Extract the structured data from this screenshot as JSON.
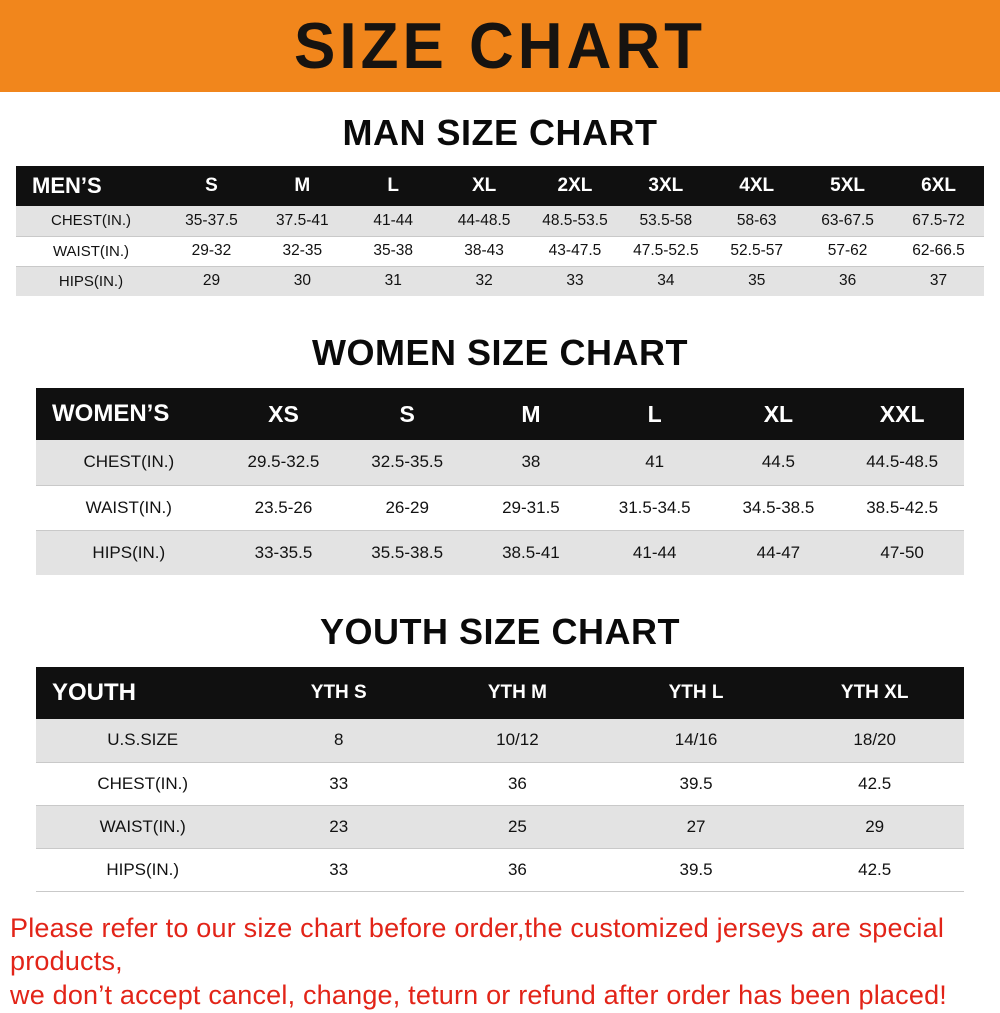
{
  "colors": {
    "banner_bg": "#f1861c",
    "table_header_bg": "#101010",
    "row_alt_bg": "#e3e3e3",
    "footnote_red": "#e22418"
  },
  "banner": {
    "title": "SIZE CHART"
  },
  "sections": [
    {
      "id": "men",
      "heading": "MAN SIZE CHART",
      "table": {
        "header": [
          "MEN’S",
          "S",
          "M",
          "L",
          "XL",
          "2XL",
          "3XL",
          "4XL",
          "5XL",
          "6XL"
        ],
        "rows": [
          {
            "label": "CHEST(IN.)",
            "values": [
              "35-37.5",
              "37.5-41",
              "41-44",
              "44-48.5",
              "48.5-53.5",
              "53.5-58",
              "58-63",
              "63-67.5",
              "67.5-72"
            ]
          },
          {
            "label": "WAIST(IN.)",
            "values": [
              "29-32",
              "32-35",
              "35-38",
              "38-43",
              "43-47.5",
              "47.5-52.5",
              "52.5-57",
              "57-62",
              "62-66.5"
            ]
          },
          {
            "label": "HIPS(IN.)",
            "values": [
              "29",
              "30",
              "31",
              "32",
              "33",
              "34",
              "35",
              "36",
              "37"
            ]
          }
        ]
      }
    },
    {
      "id": "women",
      "heading": "WOMEN SIZE CHART",
      "table": {
        "header": [
          "WOMEN’S",
          "XS",
          "S",
          "M",
          "L",
          "XL",
          "XXL"
        ],
        "rows": [
          {
            "label": "CHEST(IN.)",
            "values": [
              "29.5-32.5",
              "32.5-35.5",
              "38",
              "41",
              "44.5",
              "44.5-48.5"
            ]
          },
          {
            "label": "WAIST(IN.)",
            "values": [
              "23.5-26",
              "26-29",
              "29-31.5",
              "31.5-34.5",
              "34.5-38.5",
              "38.5-42.5"
            ]
          },
          {
            "label": "HIPS(IN.)",
            "values": [
              "33-35.5",
              "35.5-38.5",
              "38.5-41",
              "41-44",
              "44-47",
              "47-50"
            ]
          }
        ]
      }
    },
    {
      "id": "youth",
      "heading": "YOUTH SIZE CHART",
      "table": {
        "header": [
          "YOUTH",
          "YTH S",
          "YTH M",
          "YTH L",
          "YTH XL"
        ],
        "rows": [
          {
            "label": "U.S.SIZE",
            "values": [
              "8",
              "10/12",
              "14/16",
              "18/20"
            ]
          },
          {
            "label": "CHEST(IN.)",
            "values": [
              "33",
              "36",
              "39.5",
              "42.5"
            ]
          },
          {
            "label": "WAIST(IN.)",
            "values": [
              "23",
              "25",
              "27",
              "29"
            ]
          },
          {
            "label": "HIPS(IN.)",
            "values": [
              "33",
              "36",
              "39.5",
              "42.5"
            ]
          }
        ]
      }
    }
  ],
  "footnote": {
    "lines": [
      "Please refer to our size chart before order,the customized jerseys are special products,",
      "we don’t accept cancel, change, teturn or refund after order has been placed!"
    ]
  }
}
